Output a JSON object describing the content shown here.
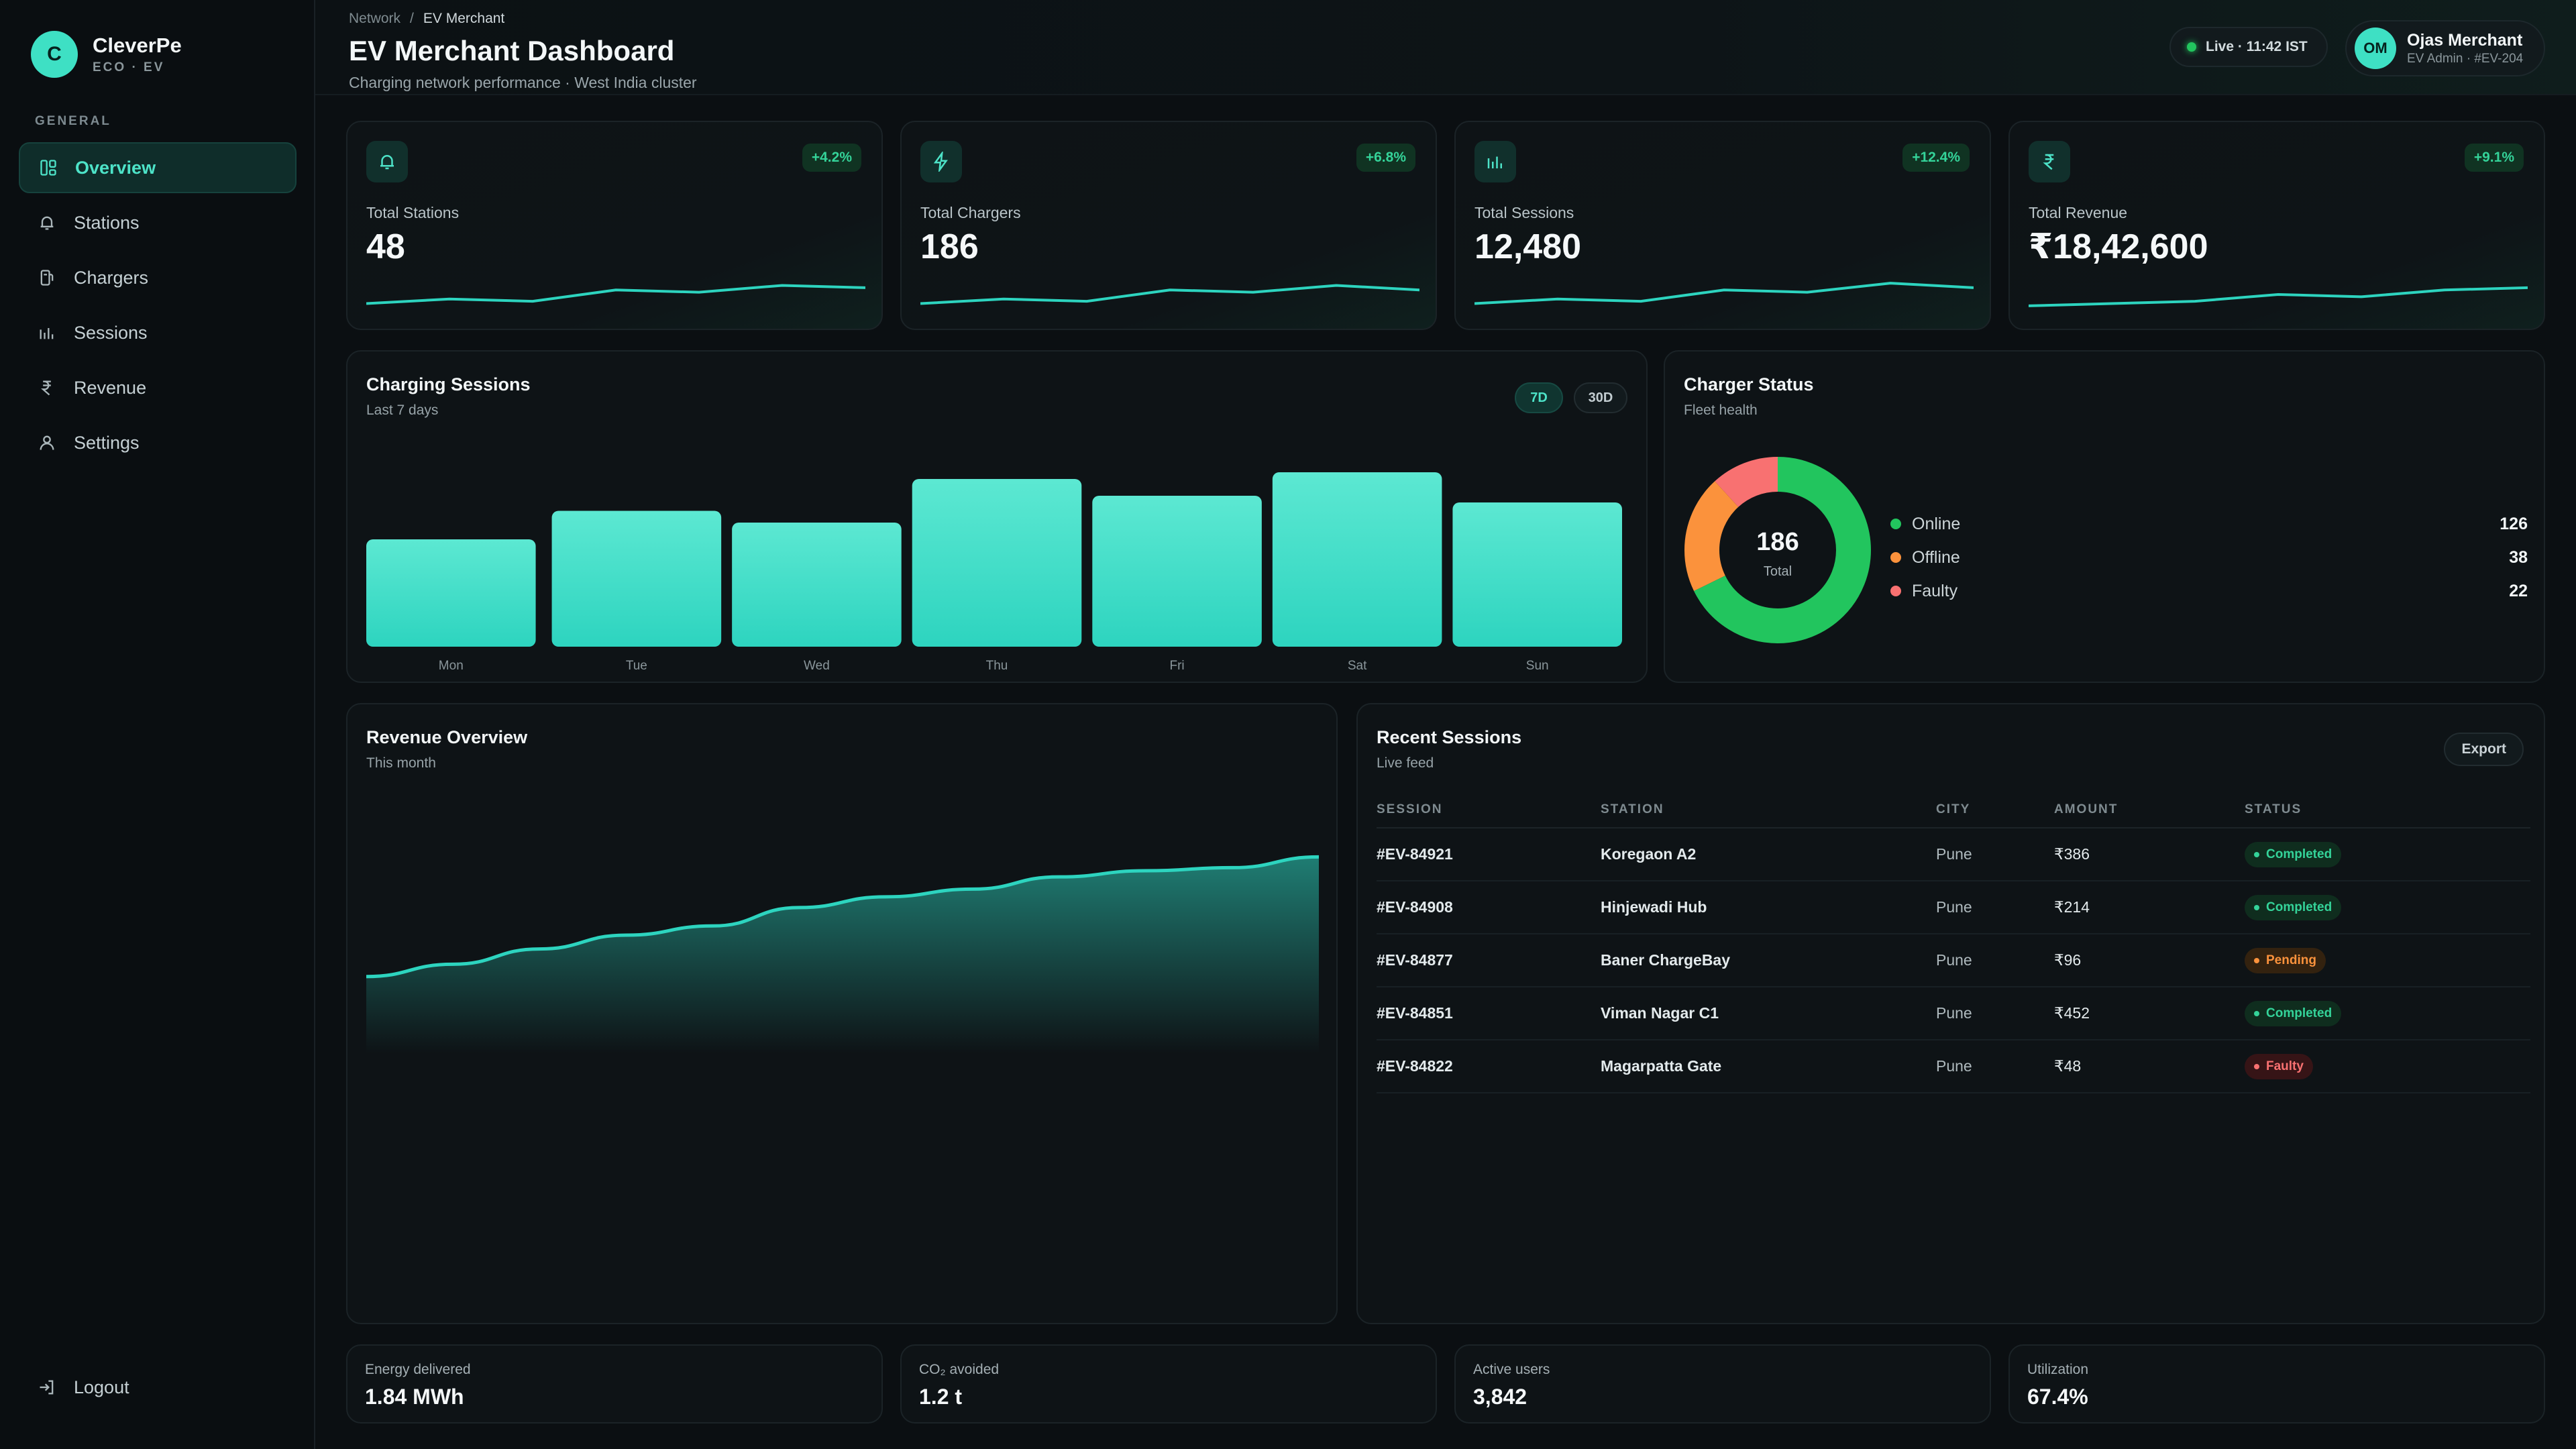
{
  "brand": {
    "name": "CleverPe",
    "initial": "C",
    "tagline": "ECO · EV"
  },
  "sidebar": {
    "section_label": "GENERAL",
    "items": [
      {
        "label": "Overview",
        "icon": "dashboard-icon",
        "active": true
      },
      {
        "label": "Stations",
        "icon": "bell-icon",
        "active": false
      },
      {
        "label": "Chargers",
        "icon": "charger-icon",
        "active": false
      },
      {
        "label": "Sessions",
        "icon": "bar-chart-icon",
        "active": false
      },
      {
        "label": "Revenue",
        "icon": "rupee-icon",
        "active": false
      },
      {
        "label": "Settings",
        "icon": "user-icon",
        "active": false
      }
    ],
    "logout_label": "Logout"
  },
  "header": {
    "breadcrumb": [
      "Network",
      "EV Merchant"
    ],
    "breadcrumb_sep": "/",
    "title": "EV Merchant Dashboard",
    "subtitle": "Charging network performance · West India cluster",
    "live_label": "Live · 11:42 IST",
    "user": {
      "initials": "OM",
      "name": "Ojas Merchant",
      "role": "EV Admin · #EV-204"
    }
  },
  "kpis": [
    {
      "label": "Total Stations",
      "value": "48",
      "change": "+4.2%",
      "icon": "bell-icon",
      "spark": [
        4,
        6,
        5,
        10,
        9,
        12,
        11
      ]
    },
    {
      "label": "Total Chargers",
      "value": "186",
      "change": "+6.8%",
      "icon": "bolt-icon",
      "spark": [
        4,
        6,
        5,
        10,
        9,
        12,
        10
      ]
    },
    {
      "label": "Total Sessions",
      "value": "12,480",
      "change": "+12.4%",
      "icon": "bar-chart-icon",
      "spark": [
        4,
        6,
        5,
        10,
        9,
        13,
        11
      ]
    },
    {
      "label": "Total Revenue",
      "value": "₹18,42,600",
      "change": "+9.1%",
      "icon": "rupee-icon",
      "spark": [
        3,
        4,
        5,
        8,
        7,
        10,
        11
      ]
    }
  ],
  "sessions_chart": {
    "title": "Charging Sessions",
    "subtitle": "Last 7 days",
    "range_buttons": [
      "7D",
      "30D"
    ],
    "active_range": "7D"
  },
  "charger_status": {
    "title": "Charger Status",
    "subtitle": "Fleet health",
    "total_value": "186",
    "total_label": "Total",
    "items": [
      {
        "label": "Online",
        "value": "126",
        "color": "#22c55e"
      },
      {
        "label": "Offline",
        "value": "38",
        "color": "#fb923c"
      },
      {
        "label": "Faulty",
        "value": "22",
        "color": "#f87171"
      }
    ]
  },
  "revenue_chart": {
    "title": "Revenue Overview",
    "subtitle": "This month"
  },
  "recent_sessions": {
    "title": "Recent Sessions",
    "subtitle": "Live feed",
    "export_label": "Export",
    "columns": [
      "SESSION",
      "STATION",
      "CITY",
      "AMOUNT",
      "STATUS"
    ],
    "rows": [
      {
        "session": "#EV-84921",
        "station": "Koregaon A2",
        "city": "Pune",
        "amount": "₹386",
        "status": "Completed"
      },
      {
        "session": "#EV-84908",
        "station": "Hinjewadi Hub",
        "city": "Pune",
        "amount": "₹214",
        "status": "Completed"
      },
      {
        "session": "#EV-84877",
        "station": "Baner ChargeBay",
        "city": "Pune",
        "amount": "₹96",
        "status": "Pending"
      },
      {
        "session": "#EV-84851",
        "station": "Viman Nagar C1",
        "city": "Pune",
        "amount": "₹452",
        "status": "Completed"
      },
      {
        "session": "#EV-84822",
        "station": "Magarpatta Gate",
        "city": "Pune",
        "amount": "₹48",
        "status": "Faulty"
      }
    ]
  },
  "footer_stats": [
    {
      "label": "Energy delivered",
      "value": "1.84 MWh"
    },
    {
      "label": "CO₂ avoided",
      "value": "1.2 t"
    },
    {
      "label": "Active users",
      "value": "3,842"
    },
    {
      "label": "Utilization",
      "value": "67.4%"
    }
  ],
  "colors": {
    "accent": "#3ee0c4",
    "online": "#22c55e",
    "offline": "#fb923c",
    "faulty": "#f87171"
  },
  "chart_data": [
    {
      "type": "bar",
      "categories": [
        "Mon",
        "Tue",
        "Wed",
        "Thu",
        "Fri",
        "Sat",
        "Sun"
      ],
      "values": [
        64,
        81,
        74,
        100,
        90,
        104,
        86
      ],
      "ylim": [
        0,
        120
      ]
    },
    {
      "type": "pie",
      "categories": [
        "Online",
        "Offline",
        "Faulty"
      ],
      "values": [
        126,
        38,
        22
      ]
    },
    {
      "type": "area",
      "x": [
        1,
        2,
        3,
        4,
        5,
        6,
        7,
        8,
        9,
        10,
        11,
        12
      ],
      "values": [
        10,
        18,
        28,
        37,
        43,
        55,
        62,
        67,
        75,
        79,
        81,
        88
      ],
      "ylim": [
        -40,
        100
      ]
    }
  ]
}
